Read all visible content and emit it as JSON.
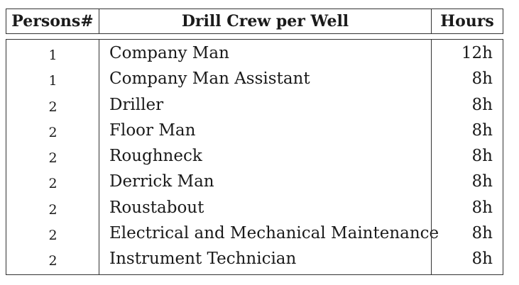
{
  "table": {
    "headers": {
      "persons": "Persons#",
      "crew": "Drill Crew per Well",
      "hours": "Hours"
    },
    "rows": [
      {
        "persons": "1",
        "crew": "Company Man",
        "hours": "12h"
      },
      {
        "persons": "1",
        "crew": "Company Man Assistant",
        "hours": "8h"
      },
      {
        "persons": "2",
        "crew": "Driller",
        "hours": "8h"
      },
      {
        "persons": "2",
        "crew": "Floor Man",
        "hours": "8h"
      },
      {
        "persons": "2",
        "crew": "Roughneck",
        "hours": "8h"
      },
      {
        "persons": "2",
        "crew": "Derrick Man",
        "hours": "8h"
      },
      {
        "persons": "2",
        "crew": "Roustabout",
        "hours": "8h"
      },
      {
        "persons": "2",
        "crew": "Electrical and Mechanical Maintenance",
        "hours": "8h"
      },
      {
        "persons": "2",
        "crew": "Instrument Technician",
        "hours": "8h"
      }
    ]
  }
}
